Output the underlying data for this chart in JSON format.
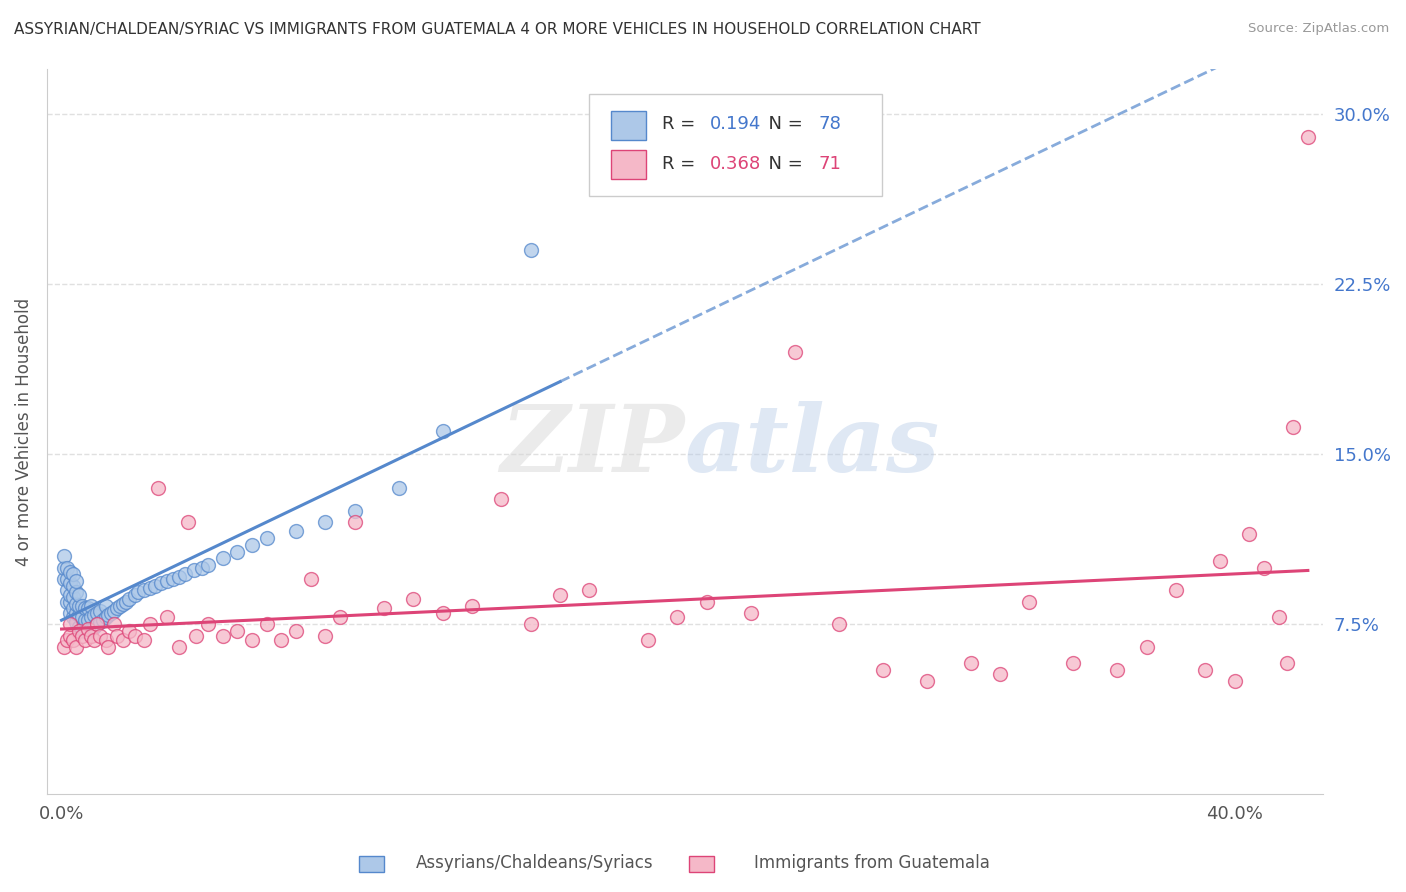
{
  "title": "ASSYRIAN/CHALDEAN/SYRIAC VS IMMIGRANTS FROM GUATEMALA 4 OR MORE VEHICLES IN HOUSEHOLD CORRELATION CHART",
  "source": "Source: ZipAtlas.com",
  "ylabel": "4 or more Vehicles in Household",
  "legend_label1": "Assyrians/Chaldeans/Syriacs",
  "legend_label2": "Immigrants from Guatemala",
  "R1": "0.194",
  "N1": "78",
  "R2": "0.368",
  "N2": "71",
  "color_blue": "#adc8e8",
  "color_pink": "#f5b8c8",
  "color_blue_line": "#5588cc",
  "color_pink_line": "#dd4477",
  "color_blue_dark": "#4477cc",
  "color_pink_dark": "#dd4477",
  "ylim": [
    0.0,
    0.32
  ],
  "xlim": [
    -0.005,
    0.43
  ],
  "yticks": [
    0.075,
    0.15,
    0.225,
    0.3
  ],
  "ytick_labels": [
    "7.5%",
    "15.0%",
    "22.5%",
    "30.0%"
  ],
  "xtick_positions": [
    0.0,
    0.4
  ],
  "xtick_labels": [
    "0.0%",
    "40.0%"
  ],
  "watermark_zip": "ZIP",
  "watermark_atlas": "atlas",
  "background_color": "#ffffff",
  "grid_color": "#e0e0e0",
  "scatter1_x": [
    0.001,
    0.001,
    0.001,
    0.002,
    0.002,
    0.002,
    0.002,
    0.003,
    0.003,
    0.003,
    0.003,
    0.003,
    0.004,
    0.004,
    0.004,
    0.004,
    0.004,
    0.005,
    0.005,
    0.005,
    0.005,
    0.005,
    0.006,
    0.006,
    0.006,
    0.006,
    0.007,
    0.007,
    0.007,
    0.008,
    0.008,
    0.008,
    0.009,
    0.009,
    0.009,
    0.01,
    0.01,
    0.01,
    0.011,
    0.011,
    0.012,
    0.012,
    0.013,
    0.013,
    0.014,
    0.015,
    0.015,
    0.016,
    0.017,
    0.018,
    0.019,
    0.02,
    0.021,
    0.022,
    0.023,
    0.025,
    0.026,
    0.028,
    0.03,
    0.032,
    0.034,
    0.036,
    0.038,
    0.04,
    0.042,
    0.045,
    0.048,
    0.05,
    0.055,
    0.06,
    0.065,
    0.07,
    0.08,
    0.09,
    0.1,
    0.115,
    0.13,
    0.16
  ],
  "scatter1_y": [
    0.095,
    0.1,
    0.105,
    0.085,
    0.09,
    0.095,
    0.1,
    0.08,
    0.085,
    0.088,
    0.093,
    0.098,
    0.078,
    0.082,
    0.087,
    0.092,
    0.097,
    0.076,
    0.08,
    0.084,
    0.089,
    0.094,
    0.074,
    0.079,
    0.083,
    0.088,
    0.073,
    0.078,
    0.083,
    0.072,
    0.077,
    0.082,
    0.072,
    0.077,
    0.082,
    0.073,
    0.078,
    0.083,
    0.074,
    0.079,
    0.075,
    0.08,
    0.076,
    0.081,
    0.077,
    0.078,
    0.083,
    0.079,
    0.08,
    0.081,
    0.082,
    0.083,
    0.084,
    0.085,
    0.086,
    0.088,
    0.089,
    0.09,
    0.091,
    0.092,
    0.093,
    0.094,
    0.095,
    0.096,
    0.097,
    0.099,
    0.1,
    0.101,
    0.104,
    0.107,
    0.11,
    0.113,
    0.116,
    0.12,
    0.125,
    0.135,
    0.16,
    0.24
  ],
  "scatter2_x": [
    0.001,
    0.002,
    0.003,
    0.003,
    0.004,
    0.005,
    0.006,
    0.007,
    0.008,
    0.009,
    0.01,
    0.011,
    0.012,
    0.013,
    0.015,
    0.016,
    0.018,
    0.019,
    0.021,
    0.023,
    0.025,
    0.028,
    0.03,
    0.033,
    0.036,
    0.04,
    0.043,
    0.046,
    0.05,
    0.055,
    0.06,
    0.065,
    0.07,
    0.075,
    0.08,
    0.085,
    0.09,
    0.095,
    0.1,
    0.11,
    0.12,
    0.13,
    0.14,
    0.15,
    0.16,
    0.17,
    0.18,
    0.2,
    0.21,
    0.22,
    0.235,
    0.25,
    0.265,
    0.28,
    0.295,
    0.31,
    0.32,
    0.33,
    0.345,
    0.36,
    0.37,
    0.38,
    0.39,
    0.395,
    0.4,
    0.405,
    0.41,
    0.415,
    0.418,
    0.42,
    0.425
  ],
  "scatter2_y": [
    0.065,
    0.068,
    0.07,
    0.075,
    0.068,
    0.065,
    0.072,
    0.07,
    0.068,
    0.073,
    0.07,
    0.068,
    0.075,
    0.07,
    0.068,
    0.065,
    0.075,
    0.07,
    0.068,
    0.072,
    0.07,
    0.068,
    0.075,
    0.135,
    0.078,
    0.065,
    0.12,
    0.07,
    0.075,
    0.07,
    0.072,
    0.068,
    0.075,
    0.068,
    0.072,
    0.095,
    0.07,
    0.078,
    0.12,
    0.082,
    0.086,
    0.08,
    0.083,
    0.13,
    0.075,
    0.088,
    0.09,
    0.068,
    0.078,
    0.085,
    0.08,
    0.195,
    0.075,
    0.055,
    0.05,
    0.058,
    0.053,
    0.085,
    0.058,
    0.055,
    0.065,
    0.09,
    0.055,
    0.103,
    0.05,
    0.115,
    0.1,
    0.078,
    0.058,
    0.162,
    0.29
  ]
}
